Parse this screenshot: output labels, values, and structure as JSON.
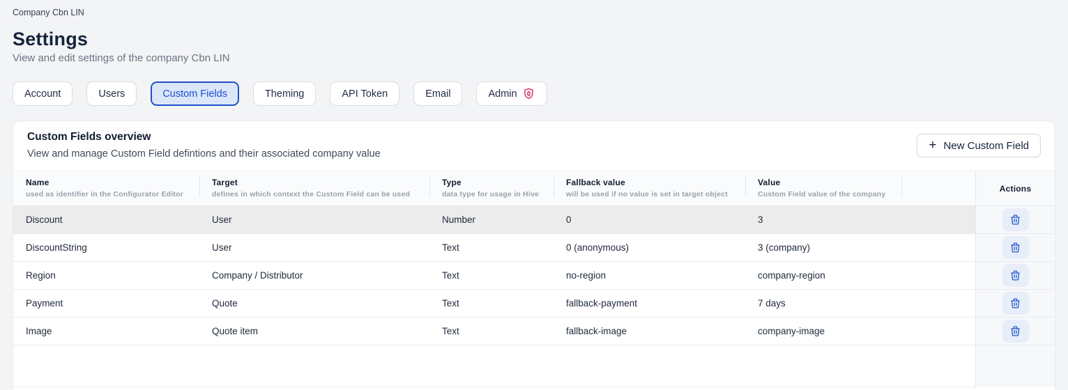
{
  "page": {
    "breadcrumb": "Company Cbn LIN",
    "title": "Settings",
    "subtitle": "View and edit settings of the company Cbn LIN"
  },
  "tabs": [
    {
      "label": "Account",
      "active": false
    },
    {
      "label": "Users",
      "active": false
    },
    {
      "label": "Custom Fields",
      "active": true
    },
    {
      "label": "Theming",
      "active": false
    },
    {
      "label": "API Token",
      "active": false
    },
    {
      "label": "Email",
      "active": false
    },
    {
      "label": "Admin",
      "active": false,
      "icon": "shield-icon"
    }
  ],
  "panel": {
    "title": "Custom Fields overview",
    "subtitle": "View and manage Custom Field defintions and their associated company value",
    "new_button_label": "New Custom Field",
    "plus_icon": "+"
  },
  "table": {
    "columns": [
      {
        "title": "Name",
        "subtitle": "used as identifier in the Configurator Editor"
      },
      {
        "title": "Target",
        "subtitle": "defines in which context the Custom Field can be used"
      },
      {
        "title": "Type",
        "subtitle": "data type for usage in Hive"
      },
      {
        "title": "Fallback value",
        "subtitle": "will be used if no value is set in target object"
      },
      {
        "title": "Value",
        "subtitle": "Custom Field value of the company"
      },
      {
        "title": "",
        "subtitle": ""
      },
      {
        "title": "Actions",
        "subtitle": ""
      }
    ],
    "rows": [
      {
        "name": "Discount",
        "target": "User",
        "type": "Number",
        "fallback": "0",
        "value": "3",
        "highlighted": true
      },
      {
        "name": "DiscountString",
        "target": "User",
        "type": "Text",
        "fallback": "0 (anonymous)",
        "value": "3 (company)",
        "highlighted": false
      },
      {
        "name": "Region",
        "target": "Company / Distributor",
        "type": "Text",
        "fallback": "no-region",
        "value": "company-region",
        "highlighted": false
      },
      {
        "name": "Payment",
        "target": "Quote",
        "type": "Text",
        "fallback": "fallback-payment",
        "value": "7 days",
        "highlighted": false
      },
      {
        "name": "Image",
        "target": "Quote item",
        "type": "Text",
        "fallback": "fallback-image",
        "value": "company-image",
        "highlighted": false
      }
    ],
    "row_action_icon": "trash-icon"
  },
  "colors": {
    "accent_blue": "#1d4ed8",
    "active_tab_bg": "#dbe7f8",
    "active_tab_border": "#2050c8",
    "admin_shield": "#d6336c",
    "trash_blue": "#2158c9",
    "trash_btn_bg": "#e8eef9",
    "highlight_row_bg": "#ececec",
    "page_bg": "#f3f4f6"
  }
}
